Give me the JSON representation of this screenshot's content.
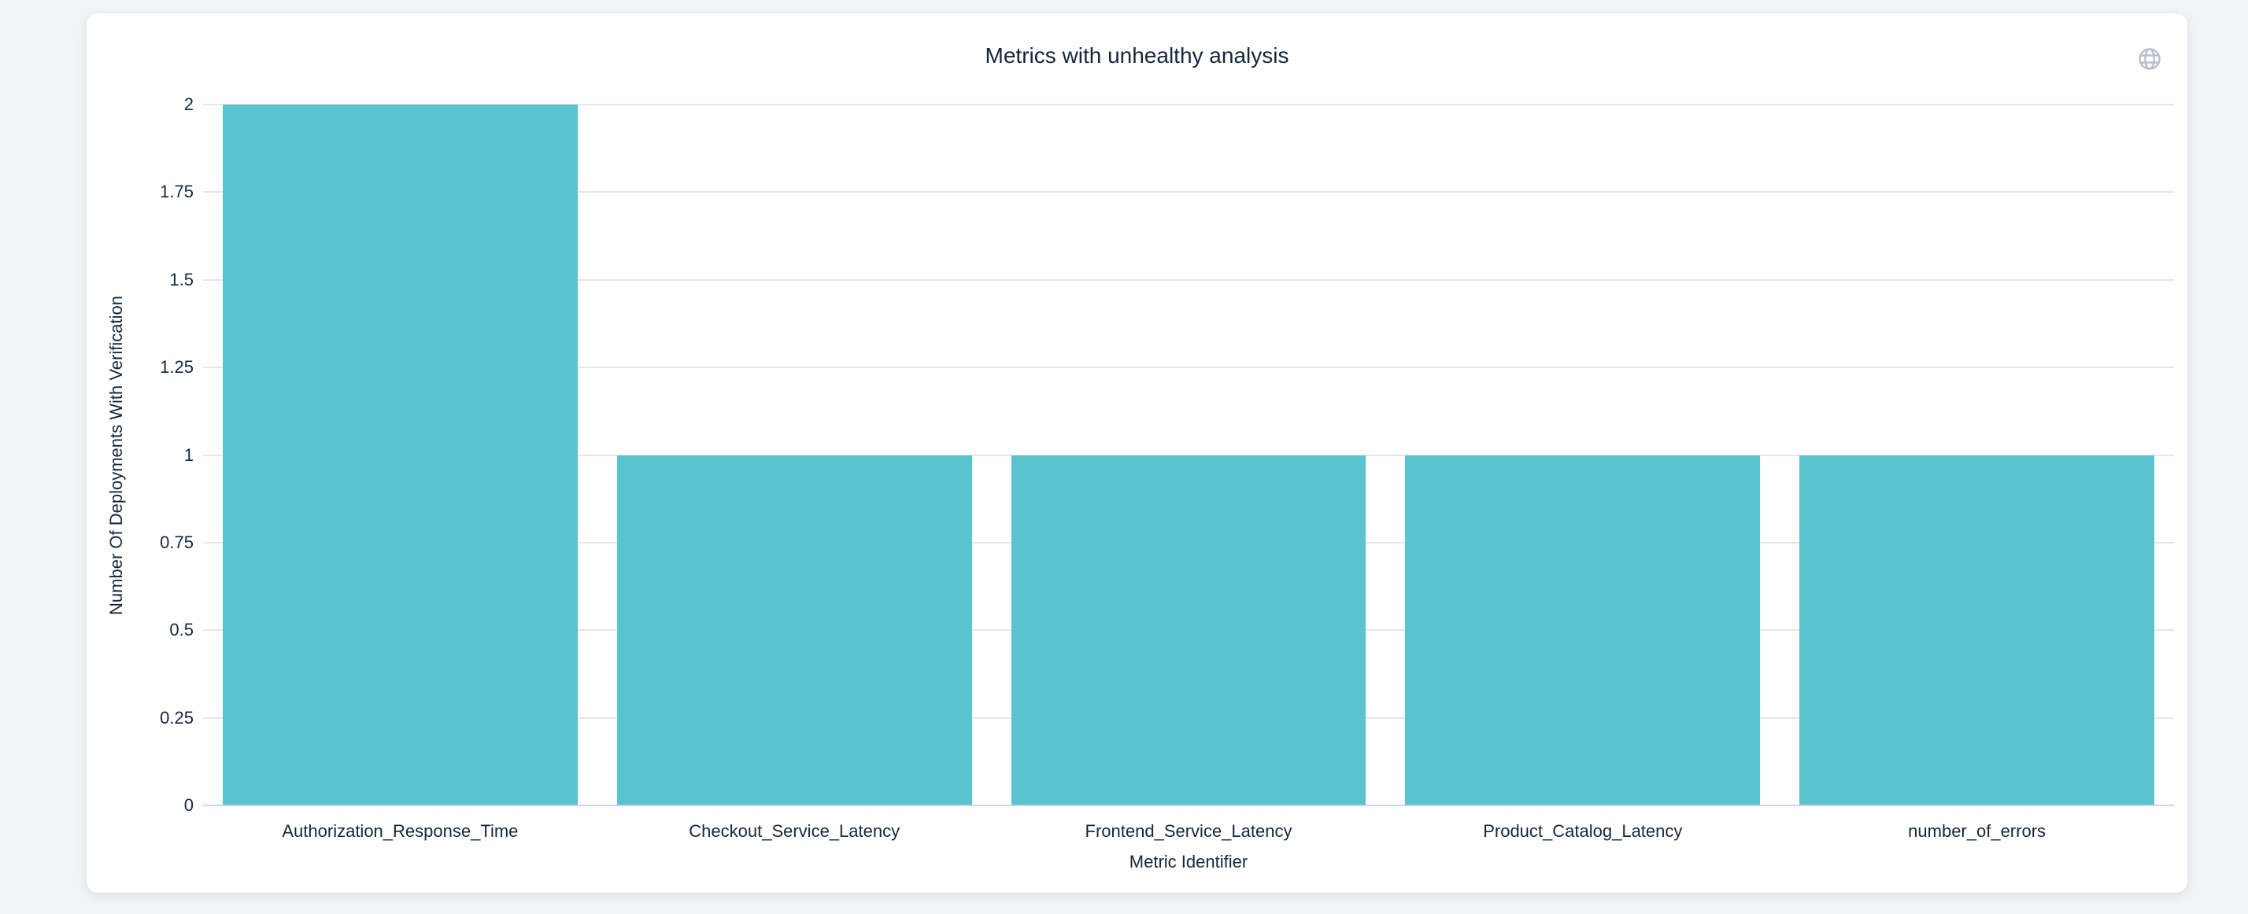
{
  "card": {
    "background": "#ffffff"
  },
  "header": {
    "globe_icon": "globe-icon",
    "globe_color": "#b8bfca"
  },
  "chart_data": {
    "type": "bar",
    "title": "Metrics with unhealthy analysis",
    "categories": [
      "Authorization_Response_Time",
      "Checkout_Service_Latency",
      "Frontend_Service_Latency",
      "Product_Catalog_Latency",
      "number_of_errors"
    ],
    "values": [
      2,
      1,
      1,
      1,
      1
    ],
    "xlabel": "Metric Identifier",
    "ylabel": "Number Of Deployments With Verification",
    "ylim": [
      0,
      2
    ],
    "yticks": [
      0,
      0.25,
      0.5,
      0.75,
      1,
      1.25,
      1.5,
      1.75,
      2
    ],
    "bar_color": "#59c3cf",
    "grid": true,
    "legend_position": "none",
    "gridline_color": "#e6e6e6",
    "zero_line_color": "#ccd4e9",
    "label_color": "#14283c",
    "bar_width_fraction": 0.9
  }
}
